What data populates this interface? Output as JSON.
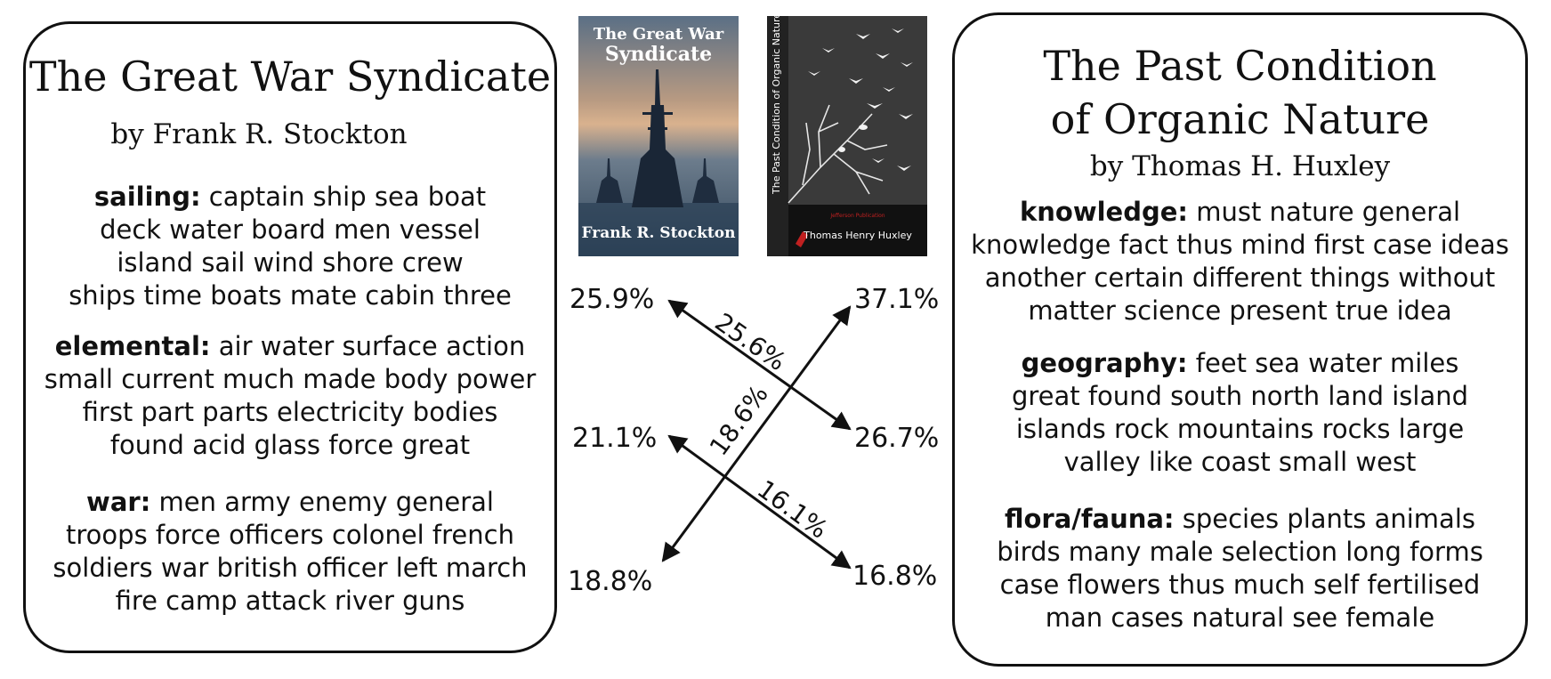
{
  "left_book": {
    "title": "The Great War Syndicate",
    "author": "by Frank R. Stockton",
    "topics": [
      {
        "name": "sailing:",
        "lines": [
          "captain ship sea boat",
          "deck water board men vessel",
          "island sail wind shore crew",
          "ships time boats mate cabin three"
        ]
      },
      {
        "name": "elemental:",
        "lines": [
          "air water surface action",
          "small current much made body power",
          "first part parts electricity bodies",
          "found acid glass force great"
        ]
      },
      {
        "name": "war:",
        "lines": [
          "men army enemy general",
          "troops force officers colonel french",
          "soldiers war british officer left march",
          "fire camp attack river guns"
        ]
      }
    ]
  },
  "right_book": {
    "title_line1": "The Past Condition",
    "title_line2": "of Organic Nature",
    "author": "by Thomas H. Huxley",
    "topics": [
      {
        "name": "knowledge:",
        "lines": [
          "must nature general",
          "knowledge fact thus mind first case ideas",
          "another certain different things without",
          "matter science present true idea"
        ]
      },
      {
        "name": "geography:",
        "lines": [
          "feet sea water miles",
          "great found south north land island",
          "islands rock mountains rocks large",
          "valley like coast small west"
        ]
      },
      {
        "name": "flora/fauna:",
        "lines": [
          "species plants animals",
          "birds many male selection long forms",
          "case flowers thus much self fertilised",
          "man cases natural see female"
        ]
      }
    ]
  },
  "covers": {
    "left": {
      "title_line1": "The Great War",
      "title_line2": "Syndicate",
      "author": "Frank R. Stockton"
    },
    "right": {
      "spine_title": "The Past Condition of Organic Nature",
      "publisher": "Jefferson Publication",
      "author": "Thomas Henry Huxley"
    }
  },
  "percentages": {
    "left_top": "25.9%",
    "left_mid": "21.1%",
    "left_bottom": "18.8%",
    "right_top": "37.1%",
    "right_mid": "26.7%",
    "right_bottom": "16.8%"
  },
  "arrows": {
    "a1_label": "25.6%",
    "a2_label": "18.6%",
    "a3_label": "16.1%"
  }
}
